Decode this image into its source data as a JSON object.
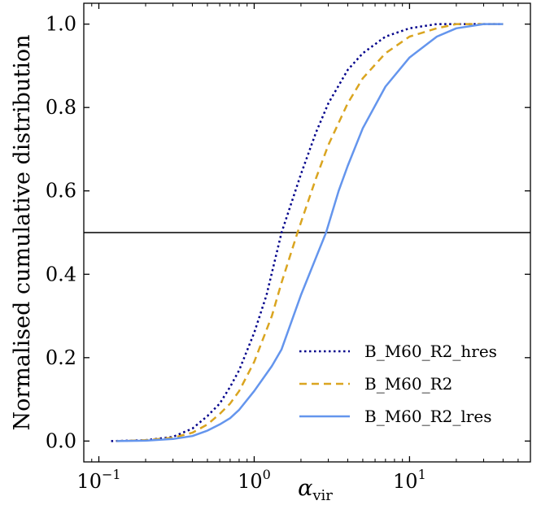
{
  "chart_data": {
    "type": "line",
    "xscale": "log",
    "xlim": [
      0.08,
      60
    ],
    "ylim": [
      -0.05,
      1.05
    ],
    "xlabel_symbol": "α",
    "xlabel_subscript": "vir",
    "ylabel": "Normalised cumulative distribution",
    "x_ticks": [
      {
        "value": 0.1,
        "base": "10",
        "exp": "−1"
      },
      {
        "value": 1,
        "base": "10",
        "exp": "0"
      },
      {
        "value": 10,
        "base": "10",
        "exp": "1"
      }
    ],
    "y_ticks": [
      {
        "value": 0.0,
        "label": "0.0"
      },
      {
        "value": 0.2,
        "label": "0.2"
      },
      {
        "value": 0.4,
        "label": "0.4"
      },
      {
        "value": 0.6,
        "label": "0.6"
      },
      {
        "value": 0.8,
        "label": "0.8"
      },
      {
        "value": 1.0,
        "label": "1.0"
      }
    ],
    "hline": {
      "y": 0.5,
      "color": "#404040"
    },
    "legend_position": "lower-right",
    "series": [
      {
        "name": "B_M60_R2_hres",
        "color": "#00008b",
        "style": "dotted",
        "points": [
          [
            0.12,
            0.0
          ],
          [
            0.2,
            0.002
          ],
          [
            0.3,
            0.01
          ],
          [
            0.4,
            0.03
          ],
          [
            0.5,
            0.06
          ],
          [
            0.6,
            0.09
          ],
          [
            0.7,
            0.13
          ],
          [
            0.8,
            0.17
          ],
          [
            1.0,
            0.26
          ],
          [
            1.2,
            0.35
          ],
          [
            1.5,
            0.5
          ],
          [
            2.0,
            0.64
          ],
          [
            2.5,
            0.74
          ],
          [
            3.0,
            0.81
          ],
          [
            4.0,
            0.89
          ],
          [
            5.0,
            0.93
          ],
          [
            7.0,
            0.97
          ],
          [
            10.0,
            0.99
          ],
          [
            15.0,
            1.0
          ],
          [
            20.0,
            1.0
          ],
          [
            40.0,
            1.0
          ]
        ]
      },
      {
        "name": "B_M60_R2",
        "color": "#daa520",
        "style": "dashed",
        "points": [
          [
            0.13,
            0.0
          ],
          [
            0.2,
            0.002
          ],
          [
            0.3,
            0.008
          ],
          [
            0.4,
            0.02
          ],
          [
            0.5,
            0.04
          ],
          [
            0.6,
            0.065
          ],
          [
            0.7,
            0.09
          ],
          [
            0.8,
            0.12
          ],
          [
            1.0,
            0.19
          ],
          [
            1.3,
            0.3
          ],
          [
            1.5,
            0.38
          ],
          [
            1.9,
            0.5
          ],
          [
            2.5,
            0.63
          ],
          [
            3.0,
            0.71
          ],
          [
            4.0,
            0.81
          ],
          [
            5.0,
            0.87
          ],
          [
            7.0,
            0.93
          ],
          [
            10.0,
            0.97
          ],
          [
            15.0,
            0.99
          ],
          [
            20.0,
            1.0
          ],
          [
            40.0,
            1.0
          ]
        ]
      },
      {
        "name": "B_M60_R2_lres",
        "color": "#6495ed",
        "style": "solid",
        "points": [
          [
            0.13,
            0.0
          ],
          [
            0.2,
            0.001
          ],
          [
            0.3,
            0.005
          ],
          [
            0.4,
            0.012
          ],
          [
            0.5,
            0.025
          ],
          [
            0.6,
            0.04
          ],
          [
            0.7,
            0.055
          ],
          [
            0.8,
            0.075
          ],
          [
            1.0,
            0.12
          ],
          [
            1.3,
            0.18
          ],
          [
            1.5,
            0.22
          ],
          [
            2.0,
            0.35
          ],
          [
            2.5,
            0.44
          ],
          [
            2.9,
            0.5
          ],
          [
            3.5,
            0.6
          ],
          [
            4.0,
            0.66
          ],
          [
            5.0,
            0.75
          ],
          [
            7.0,
            0.85
          ],
          [
            10.0,
            0.92
          ],
          [
            15.0,
            0.97
          ],
          [
            20.0,
            0.99
          ],
          [
            30.0,
            1.0
          ],
          [
            40.0,
            1.0
          ]
        ]
      }
    ]
  }
}
